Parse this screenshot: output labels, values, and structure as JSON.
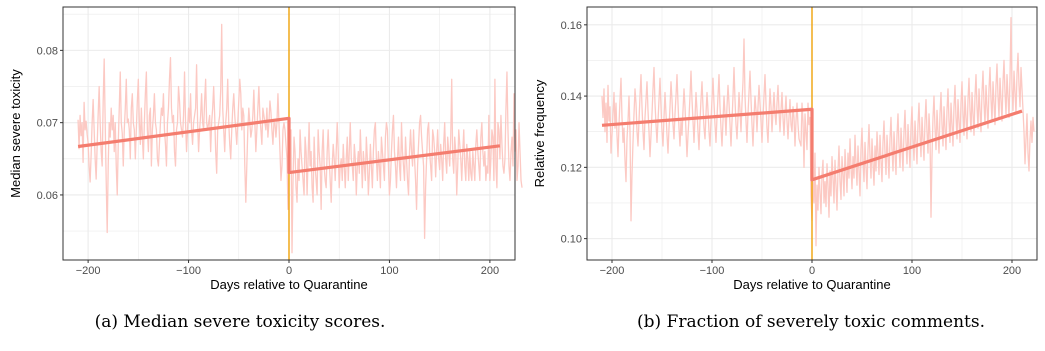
{
  "chart_data": [
    {
      "type": "line",
      "caption": "(a) Median severe toxicity scores.",
      "xlabel": "Days relative to Quarantine",
      "ylabel": "Median severe toxicity",
      "xlim": [
        -225,
        225
      ],
      "ylim": [
        0.051,
        0.086
      ],
      "x_ticks": [
        -200,
        -100,
        0,
        100,
        200
      ],
      "x_tick_labels": [
        "−200",
        "−100",
        "0",
        "100",
        "200"
      ],
      "y_ticks": [
        0.06,
        0.07,
        0.08
      ],
      "y_tick_labels": [
        "0.06",
        "0.07",
        "0.08"
      ],
      "grid": true,
      "vline_x": 0,
      "colors": {
        "raw": "#fcc9c3",
        "fit": "#f47d6f",
        "vline": "#f0a30a",
        "grid": "#ebebeb"
      },
      "raw_series": {
        "x_start": -210,
        "x_step": 1,
        "y": [
          0.0704,
          0.0664,
          0.071,
          0.0682,
          0.07,
          0.0645,
          0.0728,
          0.069,
          0.0702,
          0.0684,
          0.0672,
          0.064,
          0.0618,
          0.0655,
          0.07,
          0.0732,
          0.069,
          0.065,
          0.0622,
          0.0668,
          0.0712,
          0.075,
          0.07,
          0.066,
          0.064,
          0.073,
          0.0788,
          0.07,
          0.062,
          0.0548,
          0.064,
          0.07,
          0.068,
          0.072,
          0.069,
          0.071,
          0.066,
          0.07,
          0.064,
          0.06,
          0.067,
          0.072,
          0.077,
          0.07,
          0.0685,
          0.064,
          0.069,
          0.072,
          0.076,
          0.07,
          0.0705,
          0.069,
          0.065,
          0.072,
          0.074,
          0.07,
          0.069,
          0.065,
          0.069,
          0.073,
          0.076,
          0.07,
          0.067,
          0.072,
          0.068,
          0.065,
          0.07,
          0.074,
          0.077,
          0.069,
          0.066,
          0.071,
          0.072,
          0.064,
          0.069,
          0.071,
          0.074,
          0.07,
          0.069,
          0.065,
          0.064,
          0.067,
          0.07,
          0.072,
          0.071,
          0.074,
          0.069,
          0.067,
          0.064,
          0.07,
          0.072,
          0.076,
          0.079,
          0.072,
          0.07,
          0.071,
          0.066,
          0.064,
          0.069,
          0.07,
          0.075,
          0.073,
          0.07,
          0.069,
          0.068,
          0.071,
          0.077,
          0.07,
          0.066,
          0.069,
          0.072,
          0.07,
          0.074,
          0.069,
          0.067,
          0.07,
          0.071,
          0.072,
          0.078,
          0.07,
          0.066,
          0.069,
          0.071,
          0.074,
          0.07,
          0.069,
          0.073,
          0.076,
          0.07,
          0.069,
          0.07,
          0.071,
          0.066,
          0.07,
          0.072,
          0.075,
          0.071,
          0.066,
          0.063,
          0.069,
          0.07,
          0.071,
          0.0745,
          0.0836,
          0.072,
          0.069,
          0.066,
          0.07,
          0.072,
          0.076,
          0.07,
          0.067,
          0.065,
          0.069,
          0.072,
          0.074,
          0.071,
          0.069,
          0.067,
          0.07,
          0.073,
          0.076,
          0.074,
          0.069,
          0.072,
          0.071,
          0.064,
          0.059,
          0.064,
          0.069,
          0.072,
          0.07,
          0.068,
          0.069,
          0.071,
          0.0745,
          0.07,
          0.066,
          0.069,
          0.072,
          0.075,
          0.071,
          0.069,
          0.067,
          0.072,
          0.071,
          0.07,
          0.069,
          0.072,
          0.068,
          0.07,
          0.073,
          0.0715,
          0.069,
          0.067,
          0.07,
          0.07,
          0.068,
          0.07,
          0.074,
          0.07,
          0.066,
          0.062,
          0.064,
          0.069,
          0.07,
          0.069,
          0.067,
          0.065,
          0.058,
          0.064,
          0.068,
          0.069,
          0.052,
          0.062,
          0.068,
          0.066,
          0.061,
          0.059,
          0.065,
          0.062,
          0.069,
          0.066,
          0.064,
          0.062,
          0.06,
          0.068,
          0.066,
          0.06,
          0.065,
          0.07,
          0.064,
          0.066,
          0.061,
          0.059,
          0.068,
          0.064,
          0.062,
          0.06,
          0.069,
          0.066,
          0.064,
          0.058,
          0.066,
          0.069,
          0.064,
          0.062,
          0.061,
          0.066,
          0.069,
          0.065,
          0.062,
          0.059,
          0.064,
          0.067,
          0.065,
          0.062,
          0.066,
          0.07,
          0.066,
          0.061,
          0.064,
          0.065,
          0.062,
          0.067,
          0.064,
          0.061,
          0.065,
          0.068,
          0.062,
          0.066,
          0.07,
          0.065,
          0.064,
          0.062,
          0.067,
          0.065,
          0.06,
          0.064,
          0.066,
          0.063,
          0.069,
          0.065,
          0.061,
          0.066,
          0.064,
          0.062,
          0.068,
          0.065,
          0.06,
          0.063,
          0.067,
          0.064,
          0.061,
          0.066,
          0.069,
          0.07,
          0.065,
          0.062,
          0.066,
          0.064,
          0.061,
          0.068,
          0.066,
          0.064,
          0.062,
          0.068,
          0.07,
          0.069,
          0.064,
          0.06,
          0.062,
          0.066,
          0.069,
          0.071,
          0.066,
          0.064,
          0.061,
          0.065,
          0.068,
          0.064,
          0.062,
          0.07,
          0.066,
          0.064,
          0.062,
          0.068,
          0.065,
          0.062,
          0.06,
          0.066,
          0.069,
          0.066,
          0.064,
          0.069,
          0.065,
          0.062,
          0.058,
          0.064,
          0.067,
          0.07,
          0.071,
          0.068,
          0.066,
          0.064,
          0.054,
          0.061,
          0.065,
          0.069,
          0.07,
          0.066,
          0.064,
          0.062,
          0.069,
          0.068,
          0.066,
          0.0625,
          0.066,
          0.069,
          0.065,
          0.0635,
          0.067,
          0.065,
          0.062,
          0.067,
          0.07,
          0.065,
          0.063,
          0.068,
          0.066,
          0.064,
          0.068,
          0.076,
          0.065,
          0.063,
          0.068,
          0.066,
          0.06,
          0.064,
          0.069,
          0.067,
          0.065,
          0.062,
          0.066,
          0.069,
          0.064,
          0.062,
          0.067,
          0.065,
          0.062,
          0.066,
          0.063,
          0.062,
          0.066,
          0.064,
          0.062,
          0.067,
          0.069,
          0.066,
          0.064,
          0.062,
          0.068,
          0.07,
          0.066,
          0.064,
          0.066,
          0.062,
          0.064,
          0.063,
          0.071,
          0.062,
          0.065,
          0.069,
          0.068,
          0.062,
          0.076,
          0.064,
          0.061,
          0.07,
          0.069,
          0.065,
          0.071,
          0.067,
          0.064,
          0.063,
          0.065,
          0.072,
          0.077,
          0.069,
          0.064,
          0.062,
          0.066,
          0.068,
          0.064,
          0.074,
          0.066,
          0.069,
          0.062,
          0.064,
          0.07,
          0.066,
          0.062,
          0.061
        ]
      },
      "fit_segments": [
        {
          "x": [
            -210,
            0
          ],
          "y": [
            0.0667,
            0.0706
          ]
        },
        {
          "x": [
            0,
            210
          ],
          "y": [
            0.0631,
            0.0668
          ]
        }
      ]
    },
    {
      "type": "line",
      "caption": "(b) Fraction of severely toxic comments.",
      "xlabel": "Days relative to Quarantine",
      "ylabel": "Relative frequency",
      "xlim": [
        -225,
        225
      ],
      "ylim": [
        0.094,
        0.165
      ],
      "x_ticks": [
        -200,
        -100,
        0,
        100,
        200
      ],
      "x_tick_labels": [
        "−200",
        "−100",
        "0",
        "100",
        "200"
      ],
      "y_ticks": [
        0.1,
        0.12,
        0.14,
        0.16
      ],
      "y_tick_labels": [
        "0.10",
        "0.12",
        "0.14",
        "0.16"
      ],
      "grid": true,
      "vline_x": 0,
      "colors": {
        "raw": "#fcc9c3",
        "fit": "#f47d6f",
        "vline": "#f0a30a",
        "grid": "#ebebeb"
      },
      "raw_series": {
        "x_start": -210,
        "x_step": 1,
        "y": [
          0.14,
          0.134,
          0.142,
          0.13,
          0.138,
          0.127,
          0.143,
          0.133,
          0.137,
          0.124,
          0.129,
          0.135,
          0.141,
          0.131,
          0.138,
          0.129,
          0.123,
          0.132,
          0.139,
          0.145,
          0.134,
          0.127,
          0.131,
          0.122,
          0.116,
          0.128,
          0.133,
          0.14,
          0.13,
          0.105,
          0.118,
          0.127,
          0.135,
          0.142,
          0.138,
          0.13,
          0.126,
          0.133,
          0.14,
          0.146,
          0.137,
          0.13,
          0.125,
          0.134,
          0.139,
          0.144,
          0.136,
          0.13,
          0.123,
          0.129,
          0.135,
          0.142,
          0.148,
          0.138,
          0.132,
          0.127,
          0.133,
          0.139,
          0.145,
          0.137,
          0.13,
          0.126,
          0.134,
          0.141,
          0.135,
          0.129,
          0.124,
          0.131,
          0.137,
          0.144,
          0.139,
          0.132,
          0.128,
          0.135,
          0.14,
          0.146,
          0.138,
          0.131,
          0.126,
          0.133,
          0.129,
          0.136,
          0.142,
          0.137,
          0.13,
          0.123,
          0.129,
          0.134,
          0.14,
          0.147,
          0.139,
          0.133,
          0.127,
          0.134,
          0.141,
          0.136,
          0.13,
          0.125,
          0.133,
          0.139,
          0.144,
          0.137,
          0.131,
          0.128,
          0.135,
          0.141,
          0.136,
          0.13,
          0.126,
          0.133,
          0.139,
          0.145,
          0.138,
          0.132,
          0.127,
          0.134,
          0.14,
          0.146,
          0.137,
          0.131,
          0.126,
          0.133,
          0.14,
          0.135,
          0.129,
          0.137,
          0.143,
          0.138,
          0.132,
          0.126,
          0.133,
          0.14,
          0.148,
          0.139,
          0.132,
          0.128,
          0.134,
          0.141,
          0.136,
          0.13,
          0.138,
          0.144,
          0.156,
          0.14,
          0.133,
          0.127,
          0.135,
          0.141,
          0.147,
          0.139,
          0.132,
          0.126,
          0.134,
          0.14,
          0.136,
          0.13,
          0.137,
          0.143,
          0.138,
          0.133,
          0.127,
          0.134,
          0.14,
          0.146,
          0.138,
          0.131,
          0.127,
          0.135,
          0.142,
          0.137,
          0.13,
          0.136,
          0.141,
          0.135,
          0.132,
          0.138,
          0.143,
          0.136,
          0.13,
          0.136,
          0.141,
          0.134,
          0.129,
          0.135,
          0.14,
          0.133,
          0.128,
          0.134,
          0.139,
          0.132,
          0.13,
          0.137,
          0.134,
          0.126,
          0.133,
          0.138,
          0.132,
          0.128,
          0.127,
          0.126,
          0.138,
          0.133,
          0.12,
          0.135,
          0.13,
          0.125,
          0.138,
          0.132,
          0.134,
          0.112,
          0.105,
          0.116,
          0.11,
          0.124,
          0.098,
          0.115,
          0.108,
          0.12,
          0.113,
          0.107,
          0.118,
          0.122,
          0.11,
          0.116,
          0.109,
          0.121,
          0.115,
          0.106,
          0.119,
          0.112,
          0.123,
          0.117,
          0.11,
          0.122,
          0.115,
          0.108,
          0.119,
          0.126,
          0.116,
          0.111,
          0.123,
          0.118,
          0.112,
          0.125,
          0.119,
          0.113,
          0.124,
          0.117,
          0.128,
          0.12,
          0.114,
          0.123,
          0.117,
          0.129,
          0.121,
          0.115,
          0.126,
          0.119,
          0.112,
          0.125,
          0.131,
          0.122,
          0.116,
          0.127,
          0.12,
          0.114,
          0.125,
          0.132,
          0.123,
          0.117,
          0.128,
          0.121,
          0.115,
          0.126,
          0.119,
          0.13,
          0.124,
          0.118,
          0.129,
          0.122,
          0.116,
          0.127,
          0.133,
          0.124,
          0.118,
          0.129,
          0.123,
          0.117,
          0.128,
          0.134,
          0.125,
          0.119,
          0.13,
          0.124,
          0.118,
          0.129,
          0.135,
          0.126,
          0.12,
          0.131,
          0.125,
          0.119,
          0.13,
          0.136,
          0.127,
          0.121,
          0.132,
          0.126,
          0.12,
          0.131,
          0.137,
          0.128,
          0.122,
          0.133,
          0.127,
          0.121,
          0.132,
          0.138,
          0.129,
          0.123,
          0.134,
          0.128,
          0.122,
          0.133,
          0.139,
          0.13,
          0.124,
          0.135,
          0.129,
          0.106,
          0.123,
          0.134,
          0.14,
          0.131,
          0.125,
          0.136,
          0.13,
          0.124,
          0.135,
          0.141,
          0.132,
          0.126,
          0.137,
          0.131,
          0.125,
          0.136,
          0.142,
          0.133,
          0.127,
          0.138,
          0.132,
          0.126,
          0.137,
          0.143,
          0.134,
          0.128,
          0.139,
          0.133,
          0.127,
          0.138,
          0.144,
          0.135,
          0.129,
          0.14,
          0.134,
          0.128,
          0.139,
          0.145,
          0.136,
          0.13,
          0.141,
          0.135,
          0.129,
          0.14,
          0.146,
          0.137,
          0.131,
          0.142,
          0.136,
          0.13,
          0.141,
          0.147,
          0.138,
          0.132,
          0.143,
          0.137,
          0.131,
          0.142,
          0.148,
          0.139,
          0.133,
          0.144,
          0.138,
          0.132,
          0.143,
          0.149,
          0.14,
          0.134,
          0.145,
          0.139,
          0.133,
          0.144,
          0.15,
          0.141,
          0.135,
          0.146,
          0.14,
          0.134,
          0.145,
          0.162,
          0.142,
          0.136,
          0.147,
          0.141,
          0.135,
          0.146,
          0.152,
          0.143,
          0.137,
          0.148,
          0.142,
          0.136,
          0.13,
          0.121,
          0.128,
          0.135,
          0.124,
          0.119,
          0.128,
          0.133,
          0.127,
          0.134,
          0.13
        ]
      },
      "fit_segments": [
        {
          "x": [
            -210,
            0
          ],
          "y": [
            0.1318,
            0.1363
          ]
        },
        {
          "x": [
            0,
            210
          ],
          "y": [
            0.1165,
            0.1358
          ]
        }
      ]
    }
  ]
}
